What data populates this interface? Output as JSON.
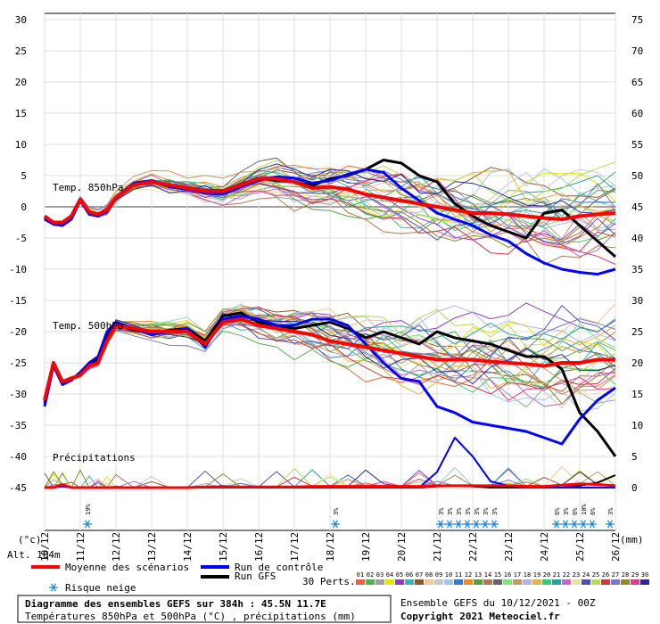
{
  "chart_data": {
    "type": "line",
    "left_axis_label": "(°c)",
    "right_axis_label": "(mm)",
    "left_ticks": [
      30,
      25,
      20,
      15,
      10,
      5,
      0,
      -5,
      -10,
      -15,
      -20,
      -25,
      -30,
      -35,
      -40,
      -45
    ],
    "right_ticks": [
      75,
      70,
      65,
      60,
      55,
      50,
      45,
      40,
      35,
      30,
      25,
      20,
      15,
      10,
      5,
      0
    ],
    "dates": [
      "10/12",
      "11/12",
      "12/12",
      "13/12",
      "14/12",
      "15/12",
      "16/12",
      "17/12",
      "18/12",
      "19/12",
      "20/12",
      "21/12",
      "22/12",
      "23/12",
      "24/12",
      "25/12",
      "26/12"
    ],
    "altitude": "Alt. 104m",
    "panels": {
      "t850": "Temp. 850hPa",
      "t500": "Temp. 500hPa",
      "precip": "Précipitations"
    },
    "time_days": [
      0,
      0.25,
      0.5,
      0.75,
      1,
      1.25,
      1.5,
      1.75,
      2,
      2.5,
      3,
      3.5,
      4,
      4.5,
      5,
      5.5,
      6,
      6.5,
      7,
      7.5,
      8,
      8.5,
      9,
      9.5,
      10,
      10.5,
      11,
      11.5,
      12,
      12.5,
      13,
      13.5,
      14,
      14.5,
      15,
      15.5,
      16
    ],
    "series": [
      {
        "name": "Moyenne des scénarios",
        "color": "#ff0000",
        "t850": [
          -1.5,
          -2.5,
          -2.5,
          -1.5,
          1.2,
          -0.8,
          -1.2,
          -0.5,
          1.5,
          3.5,
          4,
          3.5,
          3,
          2.5,
          2.5,
          3.5,
          4.5,
          4.5,
          4,
          3,
          3.2,
          2.8,
          2,
          1.5,
          1,
          0.5,
          0,
          -0.5,
          -1,
          -1,
          -1.2,
          -1.5,
          -1.8,
          -2,
          -1.5,
          -1.2,
          -1
        ],
        "t500": [
          -31,
          -25,
          -28,
          -27.5,
          -27,
          -25.5,
          -25,
          -21.5,
          -19,
          -19.5,
          -20,
          -20,
          -20,
          -22,
          -18.5,
          -18,
          -19,
          -19.5,
          -20,
          -20.5,
          -21.5,
          -22,
          -22.5,
          -23,
          -23.5,
          -24,
          -24.5,
          -24.5,
          -24.5,
          -24.8,
          -25,
          -25.2,
          -25.5,
          -25,
          -25,
          -24.5,
          -24.5
        ],
        "precip": [
          0,
          0,
          0.5,
          0,
          0,
          0,
          0,
          0,
          0,
          0,
          0,
          0,
          0,
          0.1,
          0.1,
          0.1,
          0.1,
          0.1,
          0.1,
          0.2,
          0.2,
          0.2,
          0.2,
          0.2,
          0.2,
          0.2,
          0.3,
          0.3,
          0.3,
          0.3,
          0.3,
          0.2,
          0.2,
          0.4,
          0.6,
          0.5,
          0.3
        ]
      },
      {
        "name": "Run de contrôle",
        "color": "#0000ff",
        "t850": [
          -2,
          -2.8,
          -3,
          -2,
          1,
          -1.2,
          -1.5,
          -0.8,
          1.5,
          3.8,
          4.2,
          3.2,
          2.8,
          2.2,
          2,
          3.2,
          4.2,
          4.8,
          4.6,
          3.8,
          4.2,
          5.2,
          6,
          5.5,
          3,
          1,
          -1,
          -2,
          -3,
          -4.5,
          -5.5,
          -7.5,
          -9,
          -10,
          -10.5,
          -10.8,
          -10
        ],
        "t500": [
          -32,
          -25.5,
          -28.5,
          -27.8,
          -26.5,
          -25,
          -24,
          -20,
          -18.5,
          -19.5,
          -20.5,
          -20,
          -19.5,
          -22.5,
          -18,
          -17.5,
          -18,
          -19,
          -19,
          -18,
          -18,
          -19,
          -22,
          -25,
          -27.5,
          -28,
          -32,
          -33,
          -34.5,
          -35,
          -35.5,
          -36,
          -37,
          -38,
          -34,
          -31,
          -29
        ],
        "precip": [
          0,
          0,
          0.2,
          0,
          0,
          0,
          0,
          0,
          0,
          0,
          0,
          0,
          0,
          0,
          0,
          0,
          0,
          0,
          0,
          0,
          0,
          0,
          0,
          0,
          0,
          0,
          2.5,
          8,
          5,
          1,
          0.3,
          0,
          0,
          0,
          0,
          0,
          0
        ]
      },
      {
        "name": "Run GFS",
        "color": "#000000",
        "t850": [
          -1.8,
          -2.6,
          -2.8,
          -1.6,
          1,
          -1,
          -1.3,
          -0.6,
          1.4,
          3.6,
          4,
          3.4,
          3,
          2.6,
          2.6,
          3.6,
          4.6,
          4.2,
          4,
          3.4,
          4.5,
          5,
          6,
          7.5,
          7,
          5,
          4,
          0.5,
          -1.5,
          -3,
          -4,
          -5,
          -1,
          -0.5,
          -3,
          -5.5,
          -8
        ],
        "t500": [
          -31.5,
          -25.2,
          -28.2,
          -27.6,
          -26.8,
          -25.2,
          -24.5,
          -20.5,
          -18.8,
          -19.8,
          -20.2,
          -19.8,
          -19.5,
          -21.5,
          -17.5,
          -17,
          -18.5,
          -19,
          -19.5,
          -19,
          -18.5,
          -19.5,
          -21,
          -20,
          -21,
          -22,
          -20,
          -21,
          -21.5,
          -22,
          -23,
          -24,
          -24,
          -26,
          -33,
          -36,
          -40
        ],
        "precip": [
          0,
          0,
          0.3,
          0,
          0,
          0,
          0,
          0,
          0,
          0,
          0,
          0,
          0,
          0,
          0,
          0,
          0,
          0,
          0,
          0,
          0,
          0,
          0,
          0,
          0,
          0,
          0.2,
          0.3,
          0.2,
          0,
          0,
          0,
          0,
          0,
          0.3,
          0.8,
          2
        ]
      }
    ],
    "legend": {
      "mean": "Moyenne des scénarios",
      "control": "Run de contrôle",
      "gfs": "Run GFS",
      "snow_risk": "Risque neige",
      "perturbations": "30 Perts.",
      "pert_numbers": [
        "01",
        "02",
        "03",
        "04",
        "05",
        "06",
        "07",
        "08",
        "09",
        "10",
        "11",
        "12",
        "13",
        "14",
        "15",
        "16",
        "17",
        "18",
        "19",
        "20",
        "21",
        "22",
        "23",
        "24",
        "25",
        "26",
        "27",
        "28",
        "29",
        "30"
      ],
      "pert_colors": [
        "#e8643c",
        "#50b450",
        "#a0a0a0",
        "#e6e600",
        "#8c3cc8",
        "#3cb4b4",
        "#8c5a28",
        "#f0c896",
        "#c8c8c8",
        "#a0c8e6",
        "#3c78c8",
        "#f08c28",
        "#5aa03c",
        "#b47850",
        "#646464",
        "#78e678",
        "#c89664",
        "#b4b4e6",
        "#e6b43c",
        "#3cc878",
        "#28a0a0",
        "#c864c8",
        "#e6e6a0",
        "#5050b4",
        "#b4dc50",
        "#c83c3c",
        "#7878c8",
        "#8c8c28",
        "#dc3c8c",
        "#282896"
      ]
    },
    "snow_risk_markers": [
      {
        "day": 1.2,
        "pct": "19%"
      },
      {
        "day": 8.15,
        "pct": "3%"
      },
      {
        "day": 11.1,
        "pct": "3%"
      },
      {
        "day": 11.35,
        "pct": "3%"
      },
      {
        "day": 11.6,
        "pct": "3%"
      },
      {
        "day": 11.85,
        "pct": "3%"
      },
      {
        "day": 12.1,
        "pct": "3%"
      },
      {
        "day": 12.35,
        "pct": "3%"
      },
      {
        "day": 12.6,
        "pct": "3%"
      },
      {
        "day": 14.35,
        "pct": "6%"
      },
      {
        "day": 14.6,
        "pct": "3%"
      },
      {
        "day": 14.85,
        "pct": "6%"
      },
      {
        "day": 15.1,
        "pct": "10%"
      },
      {
        "day": 15.35,
        "pct": "6%"
      },
      {
        "day": 15.85,
        "pct": "3%"
      }
    ],
    "title": "Diagramme des ensembles GEFS sur 384h : 45.5N 11.7E",
    "subtitle": "Températures 850hPa et 500hPa (°C) , précipitations (mm)",
    "ensemble_info": "Ensemble GEFS du 10/12/2021 - 00Z",
    "copyright": "Copyright 2021 Meteociel.fr"
  }
}
